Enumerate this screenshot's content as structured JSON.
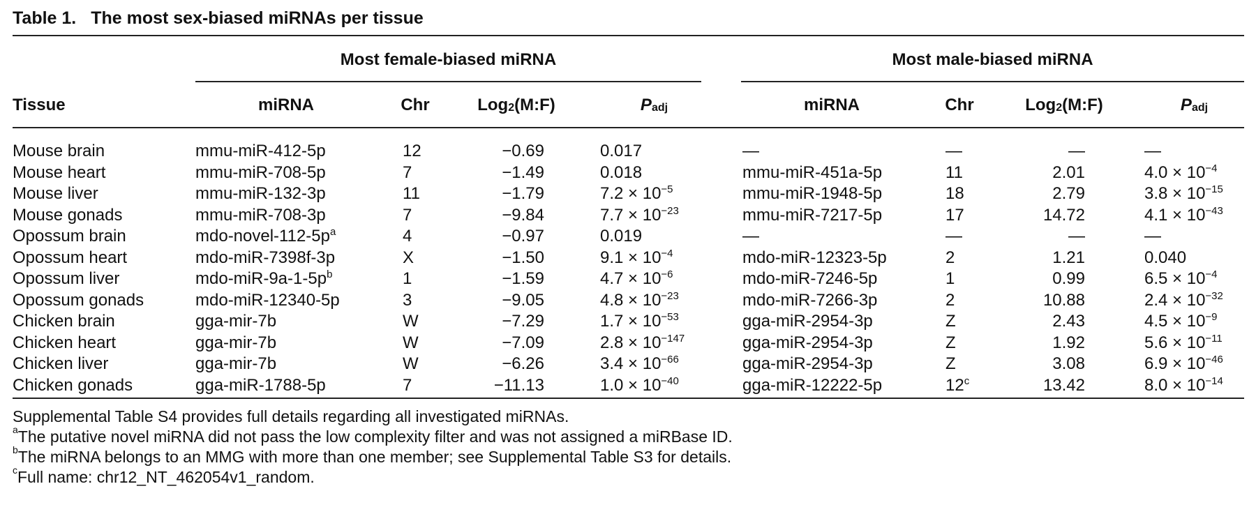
{
  "caption": {
    "label": "Table 1.",
    "title": "The most sex-biased miRNAs per tissue"
  },
  "groups": {
    "female": "Most female-biased miRNA",
    "male": "Most male-biased miRNA"
  },
  "headers": {
    "tissue": "Tissue",
    "mirna": "miRNA",
    "chr": "Chr",
    "log_pre": "Log",
    "log_sub": "2",
    "log_post": "(M:F)",
    "p": "P",
    "p_sub": "adj"
  },
  "rows": [
    {
      "tissue": "Mouse brain",
      "f_mirna": "mmu-miR-412-5p",
      "f_mirna_sup": "",
      "f_chr": "12",
      "f_chr_sup": "",
      "f_log": "−0.69",
      "f_p_m": "0.017",
      "f_p_e": "",
      "m_mirna": "—",
      "m_chr": "—",
      "m_chr_sup": "",
      "m_log": "—",
      "m_p_m": "—",
      "m_p_e": ""
    },
    {
      "tissue": "Mouse heart",
      "f_mirna": "mmu-miR-708-5p",
      "f_mirna_sup": "",
      "f_chr": "7",
      "f_chr_sup": "",
      "f_log": "−1.49",
      "f_p_m": "0.018",
      "f_p_e": "",
      "m_mirna": "mmu-miR-451a-5p",
      "m_chr": "11",
      "m_chr_sup": "",
      "m_log": "2.01",
      "m_p_m": "4.0 × 10",
      "m_p_e": "−4"
    },
    {
      "tissue": "Mouse liver",
      "f_mirna": "mmu-miR-132-3p",
      "f_mirna_sup": "",
      "f_chr": "11",
      "f_chr_sup": "",
      "f_log": "−1.79",
      "f_p_m": "7.2 × 10",
      "f_p_e": "−5",
      "m_mirna": "mmu-miR-1948-5p",
      "m_chr": "18",
      "m_chr_sup": "",
      "m_log": "2.79",
      "m_p_m": "3.8 × 10",
      "m_p_e": "−15"
    },
    {
      "tissue": "Mouse gonads",
      "f_mirna": "mmu-miR-708-3p",
      "f_mirna_sup": "",
      "f_chr": "7",
      "f_chr_sup": "",
      "f_log": "−9.84",
      "f_p_m": "7.7 × 10",
      "f_p_e": "−23",
      "m_mirna": "mmu-miR-7217-5p",
      "m_chr": "17",
      "m_chr_sup": "",
      "m_log": "14.72",
      "m_p_m": "4.1 × 10",
      "m_p_e": "−43"
    },
    {
      "tissue": "Opossum brain",
      "f_mirna": "mdo-novel-112-5p",
      "f_mirna_sup": "a",
      "f_chr": "4",
      "f_chr_sup": "",
      "f_log": "−0.97",
      "f_p_m": "0.019",
      "f_p_e": "",
      "m_mirna": "—",
      "m_chr": "—",
      "m_chr_sup": "",
      "m_log": "—",
      "m_p_m": "—",
      "m_p_e": ""
    },
    {
      "tissue": "Opossum heart",
      "f_mirna": "mdo-miR-7398f-3p",
      "f_mirna_sup": "",
      "f_chr": "X",
      "f_chr_sup": "",
      "f_log": "−1.50",
      "f_p_m": "9.1 × 10",
      "f_p_e": "−4",
      "m_mirna": "mdo-miR-12323-5p",
      "m_chr": "2",
      "m_chr_sup": "",
      "m_log": "1.21",
      "m_p_m": "0.040",
      "m_p_e": ""
    },
    {
      "tissue": "Opossum liver",
      "f_mirna": "mdo-miR-9a-1-5p",
      "f_mirna_sup": "b",
      "f_chr": "1",
      "f_chr_sup": "",
      "f_log": "−1.59",
      "f_p_m": "4.7 × 10",
      "f_p_e": "−6",
      "m_mirna": "mdo-miR-7246-5p",
      "m_chr": "1",
      "m_chr_sup": "",
      "m_log": "0.99",
      "m_p_m": "6.5 × 10",
      "m_p_e": "−4"
    },
    {
      "tissue": "Opossum gonads",
      "f_mirna": "mdo-miR-12340-5p",
      "f_mirna_sup": "",
      "f_chr": "3",
      "f_chr_sup": "",
      "f_log": "−9.05",
      "f_p_m": "4.8 × 10",
      "f_p_e": "−23",
      "m_mirna": "mdo-miR-7266-3p",
      "m_chr": "2",
      "m_chr_sup": "",
      "m_log": "10.88",
      "m_p_m": "2.4 × 10",
      "m_p_e": "−32"
    },
    {
      "tissue": "Chicken brain",
      "f_mirna": "gga-mir-7b",
      "f_mirna_sup": "",
      "f_chr": "W",
      "f_chr_sup": "",
      "f_log": "−7.29",
      "f_p_m": "1.7 × 10",
      "f_p_e": "−53",
      "m_mirna": "gga-miR-2954-3p",
      "m_chr": "Z",
      "m_chr_sup": "",
      "m_log": "2.43",
      "m_p_m": "4.5 × 10",
      "m_p_e": "−9"
    },
    {
      "tissue": "Chicken heart",
      "f_mirna": "gga-mir-7b",
      "f_mirna_sup": "",
      "f_chr": "W",
      "f_chr_sup": "",
      "f_log": "−7.09",
      "f_p_m": "2.8 × 10",
      "f_p_e": "−147",
      "m_mirna": "gga-miR-2954-3p",
      "m_chr": "Z",
      "m_chr_sup": "",
      "m_log": "1.92",
      "m_p_m": "5.6 × 10",
      "m_p_e": "−11"
    },
    {
      "tissue": "Chicken liver",
      "f_mirna": "gga-mir-7b",
      "f_mirna_sup": "",
      "f_chr": "W",
      "f_chr_sup": "",
      "f_log": "−6.26",
      "f_p_m": "3.4 × 10",
      "f_p_e": "−66",
      "m_mirna": "gga-miR-2954-3p",
      "m_chr": "Z",
      "m_chr_sup": "",
      "m_log": "3.08",
      "m_p_m": "6.9 × 10",
      "m_p_e": "−46"
    },
    {
      "tissue": "Chicken gonads",
      "f_mirna": "gga-miR-1788-5p",
      "f_mirna_sup": "",
      "f_chr": "7",
      "f_chr_sup": "",
      "f_log": "−11.13",
      "f_p_m": "1.0 × 10",
      "f_p_e": "−40",
      "m_mirna": "gga-miR-12222-5p",
      "m_chr": "12",
      "m_chr_sup": "c",
      "m_log": "13.42",
      "m_p_m": "8.0 × 10",
      "m_p_e": "−14"
    }
  ],
  "footnotes": [
    {
      "mark": "",
      "text": "Supplemental Table S4 provides full details regarding all investigated miRNAs."
    },
    {
      "mark": "a",
      "text": "The putative novel miRNA did not pass the low complexity filter and was not assigned a miRBase ID."
    },
    {
      "mark": "b",
      "text": "The miRNA belongs to an MMG with more than one member; see Supplemental Table S3 for details."
    },
    {
      "mark": "c",
      "text": "Full name: chr12_NT_462054v1_random."
    }
  ]
}
